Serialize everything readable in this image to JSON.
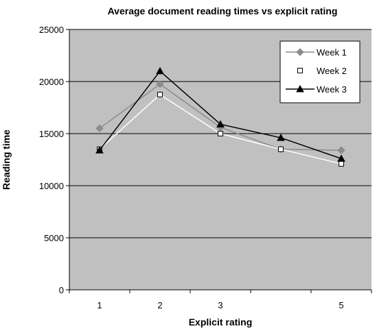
{
  "chart_data": {
    "type": "line",
    "title": "Average document reading times vs explicit rating",
    "xlabel": "Explicit rating",
    "ylabel": "Reading time",
    "x": [
      1,
      2,
      3,
      4,
      5
    ],
    "xticks": [
      "1",
      "2",
      "3",
      "",
      "5"
    ],
    "xlim": [
      0.5,
      5.5
    ],
    "ylim": [
      0,
      25000
    ],
    "yticks": [
      0,
      5000,
      10000,
      15000,
      20000,
      25000
    ],
    "grid": "horizontal",
    "legend_position": "top-right",
    "plot_background": "#c0c0c0",
    "series": [
      {
        "name": "Week 1",
        "values": [
          15500,
          19750,
          15600,
          13500,
          13400
        ],
        "color": "#8c8c8c",
        "marker": "diamond"
      },
      {
        "name": "Week 2",
        "values": [
          13500,
          18750,
          15000,
          13500,
          12100
        ],
        "color": "#ffffff",
        "marker": "square"
      },
      {
        "name": "Week 3",
        "values": [
          13400,
          21000,
          15900,
          14600,
          12600
        ],
        "color": "#000000",
        "marker": "triangle"
      }
    ]
  }
}
